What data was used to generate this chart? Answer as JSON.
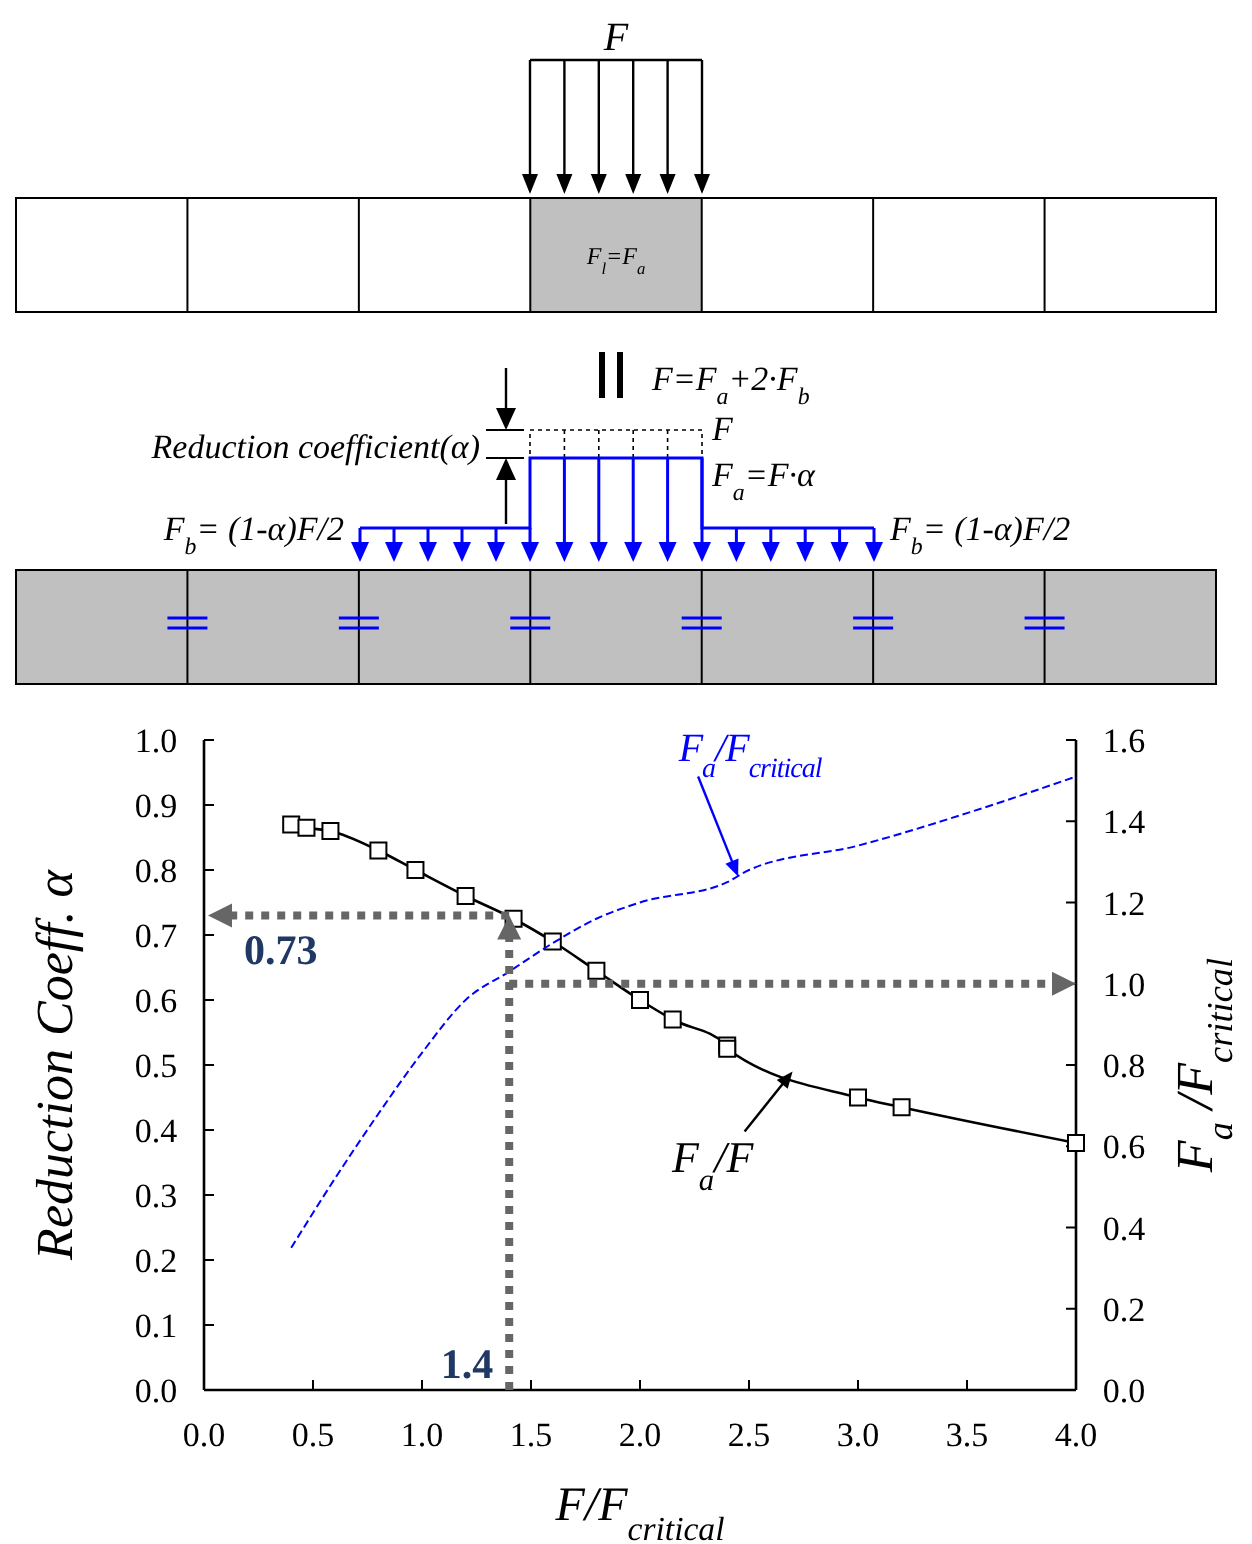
{
  "chart_data": {
    "type": "line",
    "xlabel": "F/F$_{critical}$",
    "ylabel": "Reduction Coeff. α",
    "y2label": "F$_{a}$ /F$_{critical}$",
    "x": [
      0.4,
      0.47,
      0.58,
      0.8,
      0.97,
      1.2,
      1.42,
      1.6,
      1.8,
      2.0,
      2.15,
      2.4,
      2.4,
      3.0,
      3.2,
      4.0
    ],
    "series": [
      {
        "color": "#000000",
        "marker": "square",
        "line_style": "solid",
        "values": [
          0.87,
          0.865,
          0.86,
          0.83,
          0.8,
          0.76,
          0.725,
          0.69,
          0.645,
          0.6,
          0.57,
          0.53,
          0.525,
          0.45,
          0.435,
          0.38
        ]
      },
      {
        "color": "#0000ff",
        "marker": "none",
        "line_style": "dashed",
        "axis": "y2",
        "x": [
          0.4,
          0.6,
          0.8,
          1.0,
          1.2,
          1.4,
          1.6,
          1.8,
          2.0,
          2.4,
          2.5,
          3.0,
          3.5,
          4.0
        ],
        "values": [
          0.35,
          0.52,
          0.68,
          0.83,
          0.96,
          1.03,
          1.1,
          1.16,
          1.2,
          1.25,
          1.28,
          1.34,
          1.42,
          1.51
        ]
      }
    ],
    "xlim": [
      0,
      4
    ],
    "xticks": [
      {
        "value": 0,
        "label": "0.0"
      },
      0.5,
      {
        "value": 1,
        "label": "1.0"
      },
      1.5,
      {
        "value": 2,
        "label": "2.0"
      },
      2.5,
      {
        "value": 3,
        "label": "3.0"
      },
      3.5,
      {
        "value": 4,
        "label": "4.0"
      }
    ],
    "ylim": [
      0,
      1
    ],
    "yticks": [
      {
        "value": 0,
        "label": "0.0"
      },
      0.1,
      0.2,
      0.3,
      0.4,
      0.5,
      0.6,
      0.7,
      0.8,
      0.9,
      {
        "value": 1,
        "label": "1.0"
      }
    ],
    "y2lim": [
      0,
      1.6
    ],
    "y2ticks": [
      {
        "value": 0,
        "label": "0.0"
      },
      0.2,
      0.4,
      0.6,
      0.8,
      {
        "value": 1,
        "label": "1.0"
      },
      1.2,
      1.4,
      1.6
    ],
    "ref_lines": [
      {
        "axis": "y",
        "value": 0.73,
        "label": "0.73",
        "color": "#666666",
        "line_style": "dotted"
      },
      {
        "axis": "x",
        "value": 1.4,
        "label": "1.4",
        "color": "#666666",
        "line_style": "dotted"
      },
      {
        "axis": "y2",
        "value": 1.0,
        "color": "#666666",
        "line_style": "dotted"
      }
    ],
    "annotations": [
      "F",
      "F$_{l}$=F$_{a}$",
      "F=F$_{a}$+2·F$_{b}$",
      "F",
      "F$_{a}$=F·α",
      "Reduction coefficient(α)",
      "F$_{b}$= (1-α)F/2",
      "F$_{b}$= (1-α)F/2",
      {
        "text": "F$_{a}$/F",
        "x": 2.7,
        "y": 0.49
      },
      {
        "text": "F$_{a}$/F$_{critical}$",
        "x": 2.45,
        "y": 0.79
      }
    ],
    "grid": false
  }
}
